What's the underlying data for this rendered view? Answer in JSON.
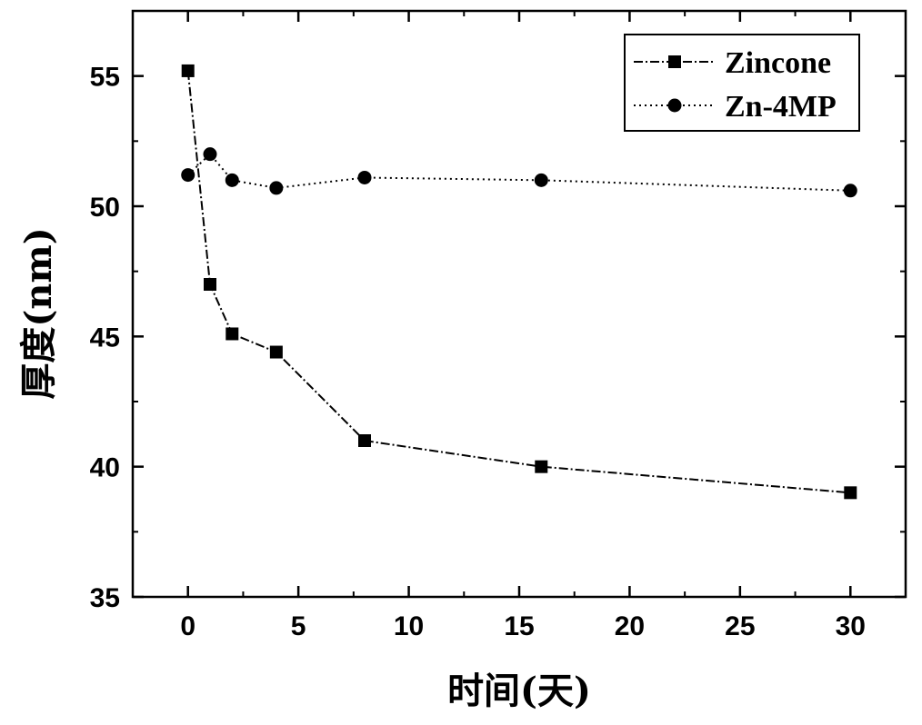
{
  "chart_data": {
    "type": "line",
    "xlabel": "时间(天)",
    "ylabel": "厚度(nm)",
    "xlim": [
      -2.5,
      32.5
    ],
    "ylim": [
      35,
      57.5
    ],
    "xticks": [
      0,
      5,
      10,
      15,
      20,
      25,
      30
    ],
    "yticks": [
      35,
      40,
      45,
      50,
      55
    ],
    "grid": false,
    "legend_position": "top-right",
    "series": [
      {
        "name": "Zincone",
        "marker": "square",
        "color": "#000000",
        "x": [
          0,
          1,
          2,
          4,
          8,
          16,
          30
        ],
        "y": [
          55.2,
          47.0,
          45.1,
          44.4,
          41.0,
          40.0,
          39.0
        ]
      },
      {
        "name": "Zn-4MP",
        "marker": "circle",
        "color": "#000000",
        "x": [
          0,
          1,
          2,
          4,
          8,
          16,
          30
        ],
        "y": [
          51.2,
          52.0,
          51.0,
          50.7,
          51.1,
          51.0,
          50.6
        ]
      }
    ]
  }
}
